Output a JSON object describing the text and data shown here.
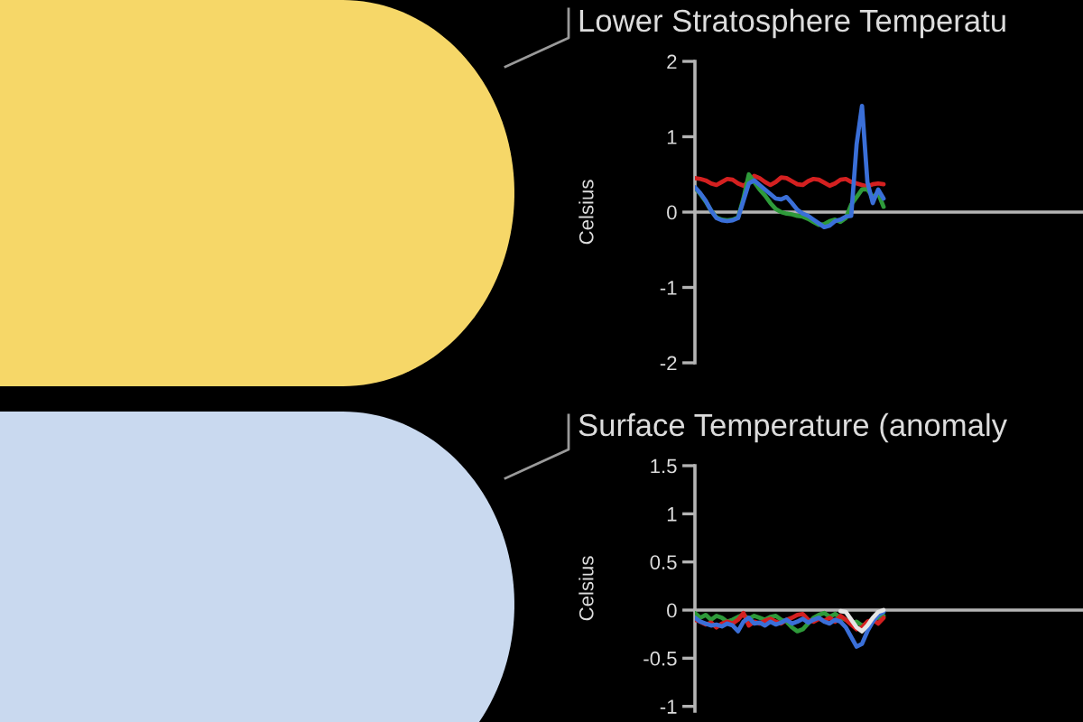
{
  "chart_data": [
    {
      "type": "line",
      "title": "Lower Stratosphere Temperatu",
      "ylabel": "Celsius",
      "tick_labels": "y",
      "ylim": [
        -2,
        2
      ],
      "yticks": [
        -2,
        -1,
        0,
        1,
        2
      ],
      "categories": [
        null,
        null,
        null,
        null,
        null,
        null,
        null,
        null,
        null,
        null,
        null,
        null,
        null,
        null,
        null,
        null,
        null,
        null,
        null,
        null,
        null,
        null,
        null,
        null,
        null,
        null,
        null,
        null,
        null,
        null,
        null,
        null,
        null,
        null,
        null,
        null,
        null,
        null,
        null,
        null,
        null,
        null,
        null,
        null,
        null,
        null,
        null,
        null,
        null,
        null,
        null,
        null,
        null,
        null,
        null,
        null,
        null,
        null,
        null,
        null,
        null,
        null,
        null,
        null,
        null,
        null,
        null,
        null,
        null,
        null,
        null,
        null,
        null
      ],
      "series": [
        {
          "color": "#d42020",
          "values": [
            0.45,
            0.44,
            0.42,
            0.38,
            0.36,
            0.4,
            0.44,
            0.43,
            0.38,
            0.35,
            0.4,
            0.48,
            0.45,
            0.4,
            0.36,
            0.4,
            0.46,
            0.45,
            0.41,
            0.37,
            0.36,
            0.41,
            0.44,
            0.43,
            0.39,
            0.35,
            0.38,
            0.43,
            0.44,
            0.4,
            0.38,
            0.36,
            0.34,
            0.37,
            0.38,
            0.37,
            null,
            null,
            null,
            null,
            null,
            null,
            null,
            null,
            null,
            null,
            null,
            null,
            null,
            null,
            null,
            null,
            null,
            null,
            null,
            null,
            null,
            null,
            null,
            null,
            null,
            null,
            null,
            null,
            null,
            null,
            null,
            null,
            null,
            null,
            null,
            null,
            null
          ]
        },
        {
          "color": "#2e9a3a",
          "values": [
            0.32,
            0.24,
            0.14,
            0.02,
            -0.07,
            -0.1,
            -0.11,
            -0.1,
            -0.07,
            0.18,
            0.5,
            0.4,
            0.3,
            0.22,
            0.12,
            0.04,
            0.0,
            -0.02,
            -0.03,
            -0.05,
            -0.06,
            -0.09,
            -0.13,
            -0.17,
            -0.16,
            -0.12,
            -0.1,
            -0.13,
            -0.08,
            0.1,
            0.2,
            0.3,
            0.3,
            0.2,
            0.25,
            0.07,
            null,
            null,
            null,
            null,
            null,
            null,
            null,
            null,
            null,
            null,
            null,
            null,
            null,
            null,
            null,
            null,
            null,
            null,
            null,
            null,
            null,
            null,
            null,
            null,
            null,
            null,
            null,
            null,
            null,
            null,
            null,
            null,
            null,
            null,
            null,
            null,
            null
          ]
        },
        {
          "color": "#3a6fd8",
          "values": [
            0.33,
            0.25,
            0.15,
            0.02,
            -0.08,
            -0.11,
            -0.12,
            -0.11,
            -0.08,
            0.15,
            0.38,
            0.42,
            0.36,
            0.3,
            0.24,
            0.18,
            0.17,
            0.2,
            0.12,
            0.03,
            -0.02,
            -0.05,
            -0.1,
            -0.15,
            -0.2,
            -0.18,
            -0.12,
            -0.1,
            -0.06,
            -0.05,
            0.9,
            1.41,
            0.4,
            0.12,
            0.3,
            0.18,
            null,
            null,
            null,
            null,
            null,
            null,
            null,
            null,
            null,
            null,
            null,
            null,
            null,
            null,
            null,
            null,
            null,
            null,
            null,
            null,
            null,
            null,
            null,
            null,
            null,
            null,
            null,
            null,
            null,
            null,
            null,
            null,
            null,
            null,
            null,
            null,
            null
          ]
        }
      ]
    },
    {
      "type": "line",
      "title": "Surface Temperature (anomaly",
      "ylabel": "Celsius",
      "tick_labels": "y",
      "ylim": [
        -1.05,
        1.5
      ],
      "yticks": [
        -1,
        -0.5,
        0,
        0.5,
        1,
        1.5
      ],
      "categories": [
        null,
        null,
        null,
        null,
        null,
        null,
        null,
        null,
        null,
        null,
        null,
        null,
        null,
        null,
        null,
        null,
        null,
        null,
        null,
        null,
        null,
        null,
        null,
        null,
        null,
        null,
        null,
        null,
        null,
        null,
        null,
        null,
        null,
        null,
        null,
        null,
        null,
        null,
        null,
        null,
        null,
        null,
        null,
        null,
        null,
        null,
        null,
        null,
        null,
        null,
        null,
        null,
        null,
        null,
        null,
        null,
        null,
        null,
        null,
        null,
        null,
        null,
        null,
        null,
        null,
        null,
        null,
        null,
        null,
        null,
        null,
        null,
        null
      ],
      "series": [
        {
          "color": "#2e9a3a",
          "values": [
            -0.03,
            -0.08,
            -0.05,
            -0.1,
            -0.06,
            -0.08,
            -0.12,
            -0.1,
            -0.07,
            -0.05,
            -0.09,
            -0.06,
            -0.08,
            -0.1,
            -0.07,
            -0.06,
            -0.1,
            -0.12,
            -0.18,
            -0.22,
            -0.2,
            -0.14,
            -0.08,
            -0.05,
            -0.03,
            -0.07,
            -0.04,
            -0.08,
            -0.1,
            -0.14,
            -0.12,
            -0.16,
            -0.14,
            -0.1,
            -0.08,
            -0.06,
            null,
            null,
            null,
            null,
            null,
            null,
            null,
            null,
            null,
            null,
            null,
            null,
            null,
            null,
            null,
            null,
            null,
            null,
            null,
            null,
            null,
            null,
            null,
            null,
            null,
            null,
            null,
            null,
            null,
            null,
            null,
            null,
            null,
            null,
            null,
            null,
            null
          ]
        },
        {
          "color": "#d42020",
          "values": [
            -0.1,
            -0.12,
            -0.15,
            -0.13,
            -0.18,
            -0.14,
            -0.12,
            -0.14,
            -0.1,
            -0.03,
            -0.16,
            -0.12,
            -0.14,
            -0.11,
            -0.09,
            -0.12,
            -0.14,
            -0.1,
            -0.08,
            -0.05,
            -0.04,
            -0.1,
            -0.12,
            -0.09,
            -0.11,
            -0.08,
            -0.12,
            -0.06,
            -0.1,
            -0.15,
            -0.2,
            -0.18,
            -0.12,
            -0.1,
            -0.14,
            -0.08,
            null,
            null,
            null,
            null,
            null,
            null,
            null,
            null,
            null,
            null,
            null,
            null,
            null,
            null,
            null,
            null,
            null,
            null,
            null,
            null,
            null,
            null,
            null,
            null,
            null,
            null,
            null,
            null,
            null,
            null,
            null,
            null,
            null,
            null,
            null,
            null,
            null
          ]
        },
        {
          "color": "#3a6fd8",
          "values": [
            -0.08,
            -0.12,
            -0.14,
            -0.16,
            -0.15,
            -0.17,
            -0.14,
            -0.16,
            -0.22,
            -0.12,
            -0.08,
            -0.14,
            -0.13,
            -0.16,
            -0.12,
            -0.15,
            -0.13,
            -0.1,
            -0.14,
            -0.12,
            -0.09,
            -0.13,
            -0.1,
            -0.08,
            -0.12,
            -0.14,
            -0.1,
            -0.12,
            -0.18,
            -0.28,
            -0.38,
            -0.35,
            -0.22,
            -0.12,
            -0.05,
            -0.02,
            null,
            null,
            null,
            null,
            null,
            null,
            null,
            null,
            null,
            null,
            null,
            null,
            null,
            null,
            null,
            null,
            null,
            null,
            null,
            null,
            null,
            null,
            null,
            null,
            null,
            null,
            null,
            null,
            null,
            null,
            null,
            null,
            null,
            null,
            null,
            null,
            null
          ]
        },
        {
          "color": "#e6e6e6",
          "values": [
            null,
            null,
            null,
            null,
            null,
            null,
            null,
            null,
            null,
            null,
            null,
            null,
            null,
            null,
            null,
            null,
            null,
            null,
            null,
            null,
            null,
            null,
            null,
            null,
            null,
            null,
            null,
            -0.01,
            -0.02,
            -0.1,
            -0.18,
            -0.22,
            -0.16,
            -0.08,
            -0.02,
            0.0,
            null,
            null,
            null,
            null,
            null,
            null,
            null,
            null,
            null,
            null,
            null,
            null,
            null,
            null,
            null,
            null,
            null,
            null,
            null,
            null,
            null,
            null,
            null,
            null,
            null,
            null,
            null,
            null,
            null,
            null,
            null,
            null,
            null,
            null,
            null,
            null,
            null
          ]
        }
      ]
    }
  ]
}
